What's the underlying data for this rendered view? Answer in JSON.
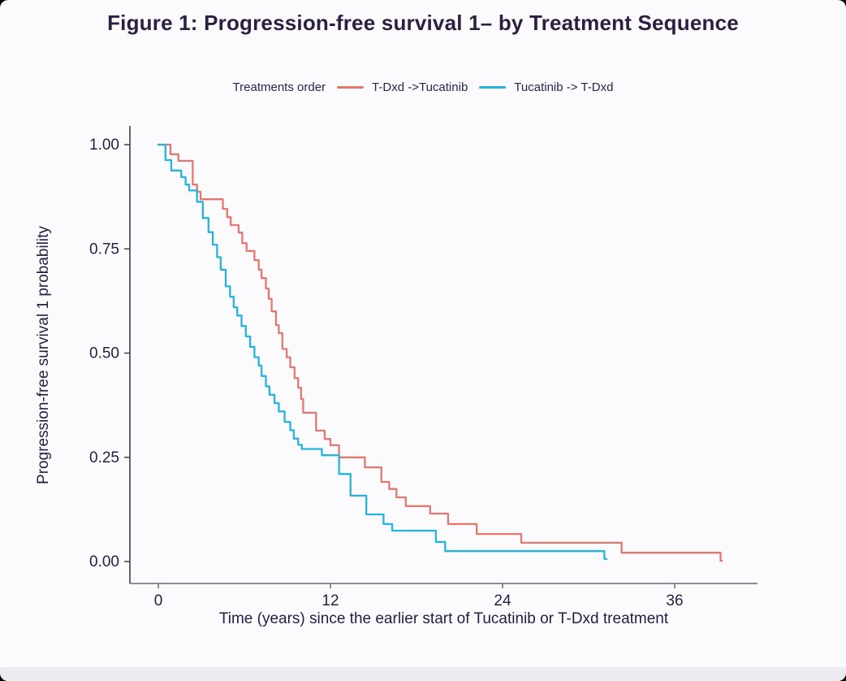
{
  "figure": {
    "title": "Figure 1: Progression-free survival 1– by Treatment Sequence"
  },
  "legend": {
    "title": "Treatments order",
    "entries": [
      {
        "label": "T-Dxd ->Tucatinib",
        "color": "#e4776e"
      },
      {
        "label": "Tucatinib -> T-Dxd",
        "color": "#26b3dc"
      }
    ]
  },
  "colors": {
    "background": "#fbfbfe",
    "title_text": "#2e1e42",
    "axis_text": "#221f46",
    "y_axis_line": "#3f3f4a",
    "x_axis_line": "#6a6a74",
    "series_red": "#e4776e",
    "series_blue": "#26b3dc"
  },
  "chart_data": {
    "type": "line",
    "subtype": "kaplan-meier-step",
    "title": "Figure 1: Progression-free survival 1– by Treatment Sequence",
    "xlabel": "Time (years) since the earlier start of Tucatinib or T-Dxd treatment",
    "ylabel": "Progression-free survival 1 probability",
    "x_tick_values": [
      0,
      12,
      24,
      36
    ],
    "x_tick_labels": [
      "0",
      "12",
      "24",
      "36"
    ],
    "y_tick_values": [
      1.0,
      0.75,
      0.5,
      0.25,
      0.0
    ],
    "y_tick_labels": [
      "1.00",
      "0.75",
      "0.50",
      "0.25",
      "0.00"
    ],
    "xlim": [
      -2,
      42
    ],
    "ylim": [
      0,
      1.04
    ],
    "grid": false,
    "legend_position": "top-center",
    "series": [
      {
        "name": "T-Dxd ->Tucatinib",
        "color": "#e4776e",
        "start": [
          0,
          1.0
        ],
        "steps": [
          [
            0.85,
            0.977
          ],
          [
            1.4,
            0.961
          ],
          [
            2.4,
            0.904
          ],
          [
            2.7,
            0.887
          ],
          [
            2.95,
            0.869
          ],
          [
            4.5,
            0.846
          ],
          [
            4.8,
            0.826
          ],
          [
            5.05,
            0.807
          ],
          [
            5.6,
            0.789
          ],
          [
            5.85,
            0.764
          ],
          [
            6.15,
            0.745
          ],
          [
            6.7,
            0.723
          ],
          [
            7.0,
            0.7
          ],
          [
            7.2,
            0.68
          ],
          [
            7.5,
            0.655
          ],
          [
            7.7,
            0.63
          ],
          [
            7.9,
            0.6
          ],
          [
            8.2,
            0.567
          ],
          [
            8.4,
            0.548
          ],
          [
            8.65,
            0.51
          ],
          [
            8.95,
            0.49
          ],
          [
            9.2,
            0.466
          ],
          [
            9.5,
            0.44
          ],
          [
            9.75,
            0.417
          ],
          [
            9.95,
            0.39
          ],
          [
            10.1,
            0.357
          ],
          [
            11.0,
            0.314
          ],
          [
            11.6,
            0.294
          ],
          [
            12.0,
            0.279
          ],
          [
            12.6,
            0.25
          ],
          [
            14.4,
            0.226
          ],
          [
            15.55,
            0.191
          ],
          [
            16.1,
            0.174
          ],
          [
            16.6,
            0.154
          ],
          [
            17.25,
            0.133
          ],
          [
            18.95,
            0.115
          ],
          [
            20.2,
            0.09
          ],
          [
            22.2,
            0.066
          ],
          [
            25.3,
            0.045
          ],
          [
            32.3,
            0.021
          ],
          [
            39.2,
            0.002
          ]
        ],
        "end": 39.3
      },
      {
        "name": "Tucatinib -> T-Dxd",
        "color": "#26b3dc",
        "start": [
          0,
          1.0
        ],
        "steps": [
          [
            0.5,
            0.963
          ],
          [
            0.9,
            0.938
          ],
          [
            1.6,
            0.922
          ],
          [
            1.9,
            0.904
          ],
          [
            2.15,
            0.89
          ],
          [
            2.7,
            0.863
          ],
          [
            3.1,
            0.824
          ],
          [
            3.5,
            0.79
          ],
          [
            3.8,
            0.76
          ],
          [
            4.1,
            0.73
          ],
          [
            4.35,
            0.7
          ],
          [
            4.7,
            0.66
          ],
          [
            5.0,
            0.635
          ],
          [
            5.25,
            0.61
          ],
          [
            5.5,
            0.59
          ],
          [
            5.8,
            0.565
          ],
          [
            6.1,
            0.54
          ],
          [
            6.4,
            0.515
          ],
          [
            6.7,
            0.49
          ],
          [
            7.0,
            0.47
          ],
          [
            7.2,
            0.445
          ],
          [
            7.5,
            0.42
          ],
          [
            7.75,
            0.4
          ],
          [
            8.1,
            0.38
          ],
          [
            8.4,
            0.36
          ],
          [
            8.8,
            0.335
          ],
          [
            9.2,
            0.315
          ],
          [
            9.45,
            0.295
          ],
          [
            9.75,
            0.28
          ],
          [
            10.0,
            0.27
          ],
          [
            11.4,
            0.255
          ],
          [
            12.6,
            0.21
          ],
          [
            13.4,
            0.158
          ],
          [
            14.5,
            0.113
          ],
          [
            15.7,
            0.09
          ],
          [
            16.3,
            0.074
          ],
          [
            19.35,
            0.047
          ],
          [
            20.0,
            0.025
          ],
          [
            31.1,
            0.006
          ]
        ],
        "end": 31.25
      }
    ]
  }
}
